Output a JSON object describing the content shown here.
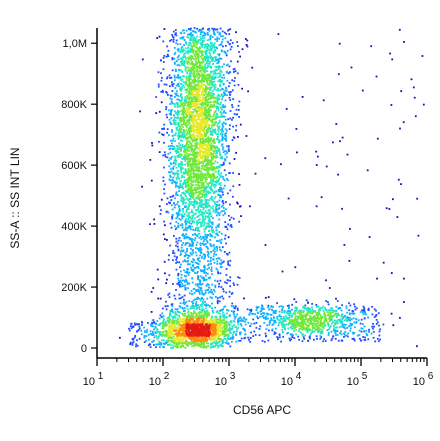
{
  "chart_data": {
    "type": "scatter",
    "style": "density dot plot (flow cytometry)",
    "xlabel": "CD56 APC",
    "ylabel": "SS-A :: SS INT LIN",
    "x_scale": "log",
    "xlim": [
      10,
      1000000
    ],
    "ylim": [
      0,
      1050000
    ],
    "y_ticks": [
      {
        "value": 0,
        "label": "0"
      },
      {
        "value": 200000,
        "label": "200K"
      },
      {
        "value": 400000,
        "label": "400K"
      },
      {
        "value": 600000,
        "label": "600K"
      },
      {
        "value": 800000,
        "label": "800K"
      },
      {
        "value": 1000000,
        "label": "1,0M"
      }
    ],
    "x_ticks": [
      {
        "value": 10,
        "base": "10",
        "exp": "1"
      },
      {
        "value": 100,
        "base": "10",
        "exp": "2"
      },
      {
        "value": 1000,
        "base": "10",
        "exp": "3"
      },
      {
        "value": 10000,
        "base": "10",
        "exp": "4"
      },
      {
        "value": 100000,
        "base": "10",
        "exp": "5"
      },
      {
        "value": 1000000,
        "base": "10",
        "exp": "6"
      }
    ],
    "grid": false,
    "legend": "none",
    "colormap": [
      "#1a0fb5",
      "#1f4cff",
      "#10b0ff",
      "#22e6c4",
      "#6fe83a",
      "#e8e82a",
      "#ff8a10",
      "#e41a12"
    ],
    "populations": [
      {
        "x_center": 320,
        "x_spread_decades": 0.28,
        "y_center": 60000,
        "y_spread": 30000,
        "count": 1500
      },
      {
        "x_center": 350,
        "x_spread_decades": 0.22,
        "y_center": 720000,
        "y_spread": 190000,
        "count": 2400
      },
      {
        "x_center": 350,
        "x_spread_decades": 0.25,
        "y_range": [
          100000,
          1050000
        ],
        "count": 1800
      },
      {
        "x_center": 18000,
        "x_spread_decades": 0.35,
        "y_center": 90000,
        "y_spread": 25000,
        "count": 550
      },
      {
        "x_range": [
          800,
          200000
        ],
        "y_range": [
          20000,
          140000
        ],
        "count": 380
      },
      {
        "x_range": [
          30,
          150
        ],
        "y_range": [
          0,
          90000
        ],
        "count": 120
      },
      {
        "x_range": [
          1000,
          1000000
        ],
        "y_range": [
          0,
          1050000
        ],
        "count": 90
      }
    ]
  }
}
